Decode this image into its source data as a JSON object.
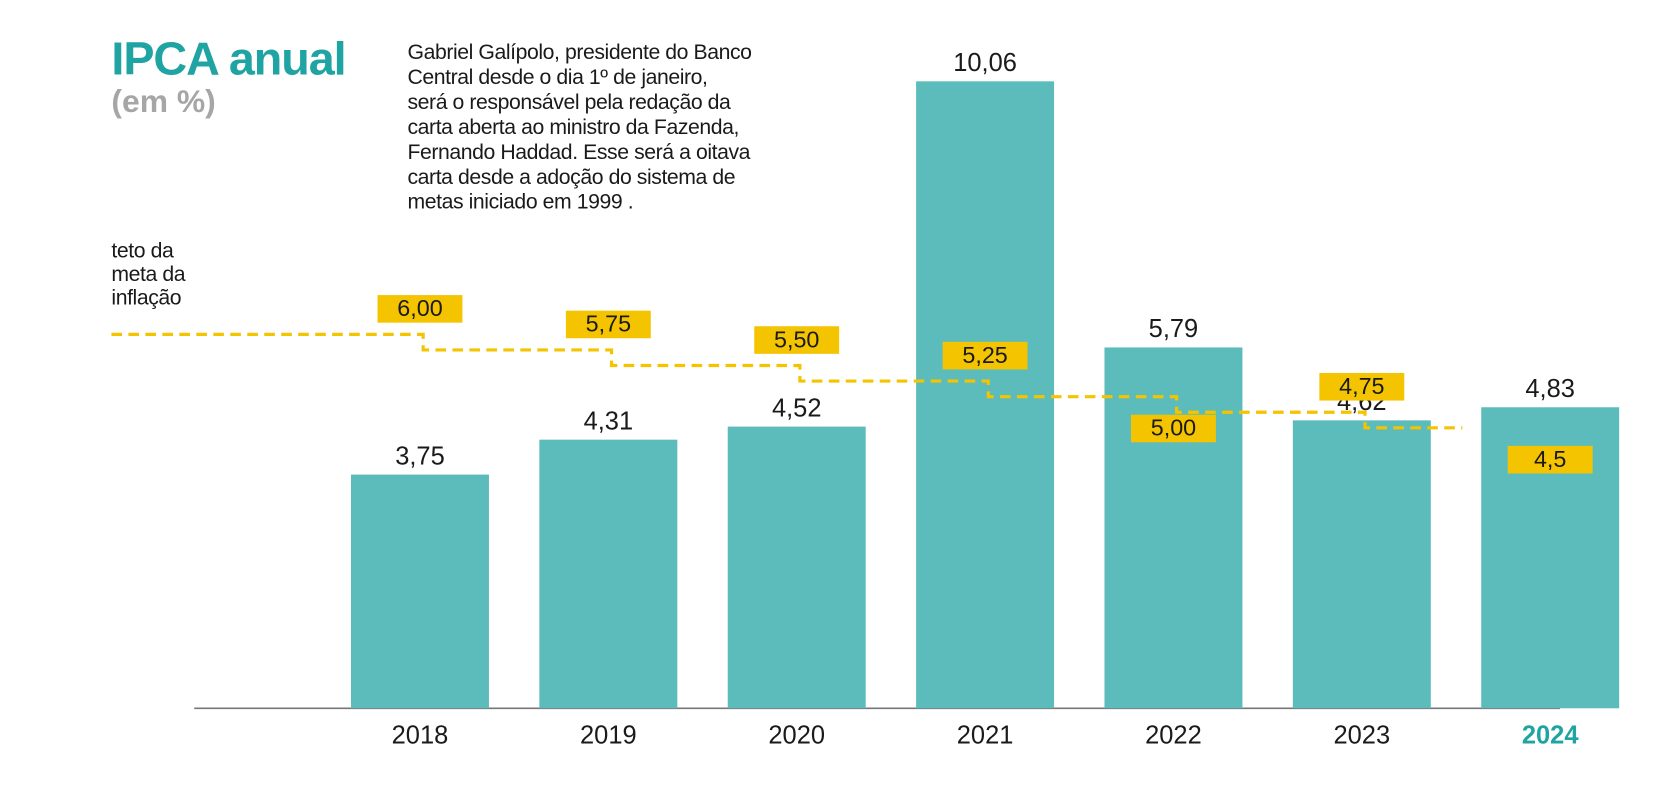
{
  "chart_data": {
    "type": "bar",
    "title": "IPCA anual",
    "subtitle": "(em %)",
    "annotation": [
      "Gabriel Galípolo,  presidente do Banco",
      "Central desde o dia 1º de janeiro,",
      "será o responsável pela redação da",
      "carta aberta ao ministro da Fazenda,",
      "Fernando Haddad. Esse será a oitava",
      "carta desde  a adoção do sistema de",
      "metas iniciado em 1999 ."
    ],
    "categories": [
      "2018",
      "2019",
      "2020",
      "2021",
      "2022",
      "2023",
      "2024"
    ],
    "values": [
      3.75,
      4.31,
      4.52,
      10.06,
      5.79,
      4.62,
      4.83
    ],
    "value_labels": [
      "3,75",
      "4,31",
      "4,52",
      "10,06",
      "5,79",
      "4,62",
      "4,83"
    ],
    "color": "#5bbcbb",
    "highlight_index": 6,
    "highlight_color": "#1fa3a3",
    "ylim": [
      0,
      11
    ],
    "target_line": {
      "label": [
        "teto da",
        "meta da",
        "inflação"
      ],
      "values": [
        6.0,
        5.75,
        5.5,
        5.25,
        5.0,
        4.75,
        4.5
      ],
      "value_labels": [
        "6,00",
        "5,75",
        "5,50",
        "5,25",
        "5,00",
        "4,75",
        "4,5"
      ],
      "color": "#f5c400"
    }
  }
}
